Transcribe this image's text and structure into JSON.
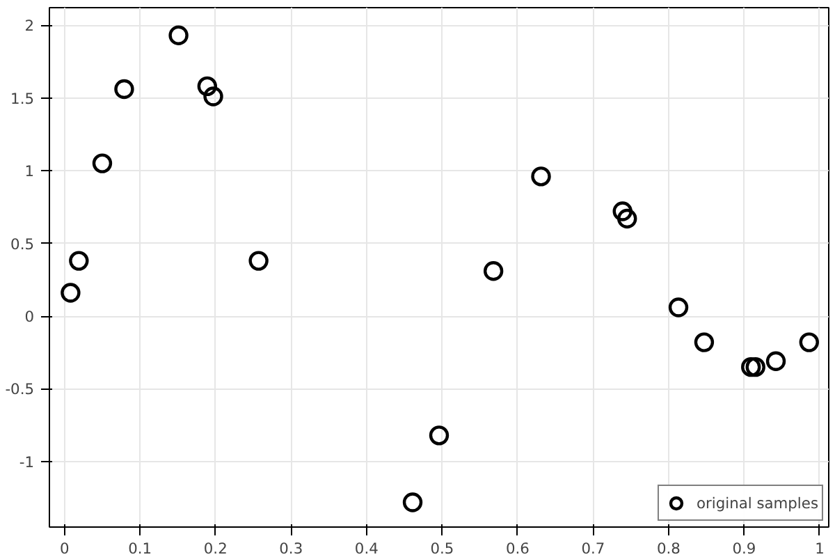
{
  "chart_data": {
    "type": "scatter",
    "marker": "circle",
    "grid": true,
    "legend": "bottom right",
    "x": [
      0.008,
      0.019,
      0.05,
      0.079,
      0.151,
      0.189,
      0.197,
      0.257,
      0.461,
      0.496,
      0.568,
      0.631,
      0.739,
      0.745,
      0.813,
      0.847,
      0.909,
      0.915,
      0.942,
      0.986
    ],
    "series": [
      {
        "name": "original samples",
        "color": "#000000",
        "values": [
          0.16,
          0.38,
          1.05,
          1.56,
          1.93,
          1.58,
          1.51,
          0.38,
          -1.28,
          -0.82,
          0.31,
          0.96,
          0.72,
          0.67,
          0.06,
          -0.18,
          -0.35,
          -0.35,
          -0.31,
          -0.18
        ]
      }
    ],
    "xlim": [
      -0.02,
      1.012
    ],
    "ylim": [
      -1.45,
      2.12
    ],
    "xticks": [
      0,
      0.1,
      0.2,
      0.3,
      0.4,
      0.5,
      0.6,
      0.7,
      0.8,
      0.9,
      1
    ],
    "yticks": [
      -1,
      -0.5,
      0,
      0.5,
      1,
      1.5,
      2
    ]
  }
}
